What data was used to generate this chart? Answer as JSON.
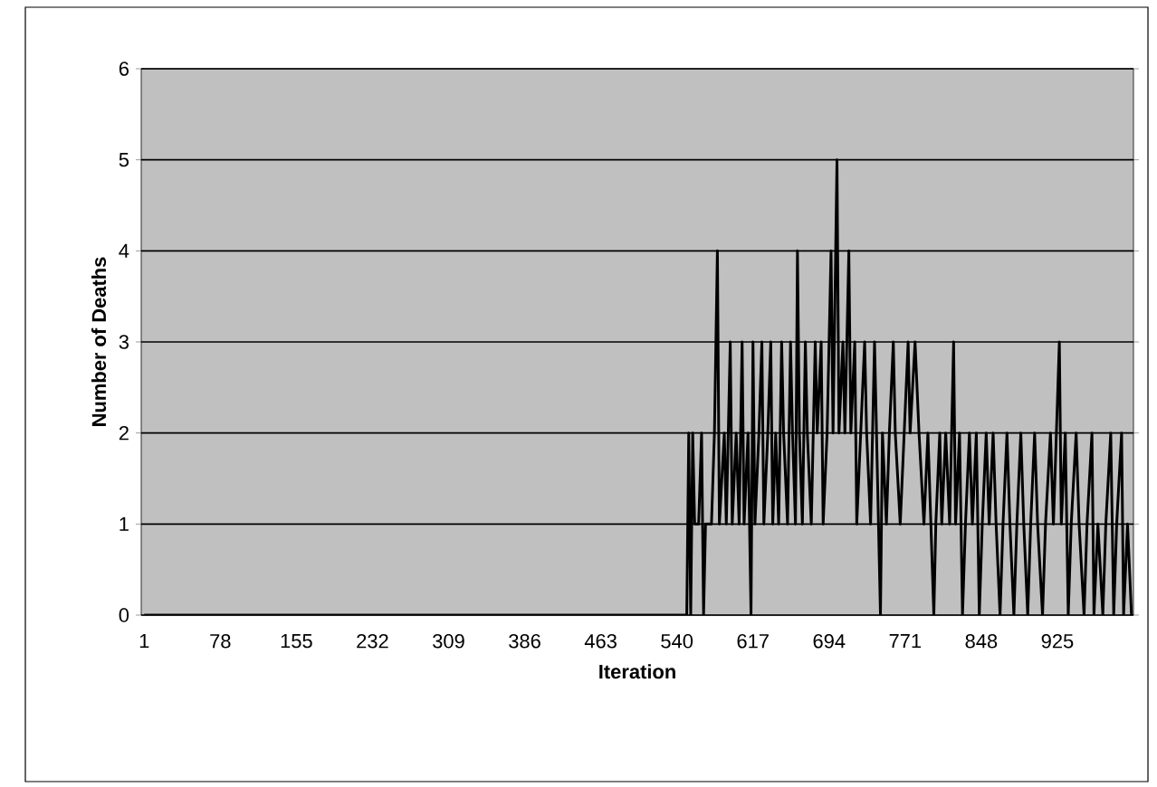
{
  "chart_data": {
    "type": "line",
    "xlabel": "Iteration",
    "ylabel": "Number of Deaths",
    "xlim": [
      -2,
      1002
    ],
    "ylim": [
      0,
      6
    ],
    "xticks": [
      1,
      78,
      155,
      232,
      309,
      386,
      463,
      540,
      617,
      694,
      771,
      848,
      925
    ],
    "yticks": [
      0,
      1,
      2,
      3,
      4,
      5,
      6
    ],
    "grid": "y",
    "marker": "none",
    "line_style": "solid",
    "series": [
      {
        "color": "#000000",
        "x": [
          1,
          550,
          552,
          554,
          556,
          558,
          562,
          565,
          567,
          569,
          575,
          578,
          581,
          583,
          588,
          590,
          594,
          596,
          600,
          603,
          606,
          608,
          612,
          615,
          617,
          619,
          623,
          626,
          628,
          632,
          635,
          637,
          640,
          643,
          646,
          648,
          652,
          655,
          657,
          660,
          662,
          664,
          667,
          670,
          672,
          676,
          680,
          682,
          686,
          688,
          692,
          694,
          696,
          698,
          702,
          704,
          708,
          710,
          714,
          716,
          720,
          722,
          726,
          730,
          732,
          736,
          740,
          742,
          746,
          748,
          752,
          755,
          759,
          761,
          766,
          770,
          774,
          776,
          781,
          785,
          790,
          794,
          797,
          800,
          802,
          806,
          808,
          812,
          816,
          820,
          822,
          826,
          829,
          832,
          836,
          839,
          843,
          846,
          849,
          853,
          856,
          860,
          863,
          867,
          870,
          874,
          877,
          881,
          884,
          888,
          891,
          895,
          898,
          902,
          905,
          910,
          913,
          918,
          921,
          927,
          929,
          933,
          936,
          939,
          944,
          947,
          952,
          955,
          960,
          962,
          966,
          971,
          974,
          979,
          982,
          985,
          990,
          992,
          996,
          1000
        ],
        "values": [
          0,
          0,
          2,
          0,
          2,
          1,
          1,
          2,
          0,
          1,
          1,
          2,
          4,
          1,
          2,
          1,
          3,
          1,
          2,
          1,
          3,
          1,
          2,
          0,
          3,
          1,
          2,
          3,
          1,
          2,
          3,
          1,
          2,
          1,
          3,
          2,
          1,
          3,
          2,
          1,
          4,
          2,
          1,
          3,
          2,
          1,
          3,
          2,
          3,
          1,
          2,
          3,
          4,
          2,
          5,
          2,
          3,
          2,
          4,
          2,
          3,
          1,
          2,
          3,
          2,
          1,
          3,
          2,
          0,
          2,
          1,
          2,
          3,
          2,
          1,
          2,
          3,
          2,
          3,
          2,
          1,
          2,
          1,
          0,
          1,
          2,
          1,
          2,
          1,
          3,
          1,
          2,
          0,
          1,
          2,
          1,
          2,
          0,
          1,
          2,
          1,
          2,
          1,
          0,
          1,
          2,
          1,
          0,
          1,
          2,
          1,
          0,
          1,
          2,
          1,
          0,
          1,
          2,
          1,
          3,
          1,
          2,
          0,
          1,
          2,
          1,
          0,
          1,
          2,
          0,
          1,
          0,
          1,
          2,
          0,
          1,
          2,
          0,
          1,
          0
        ]
      }
    ]
  }
}
